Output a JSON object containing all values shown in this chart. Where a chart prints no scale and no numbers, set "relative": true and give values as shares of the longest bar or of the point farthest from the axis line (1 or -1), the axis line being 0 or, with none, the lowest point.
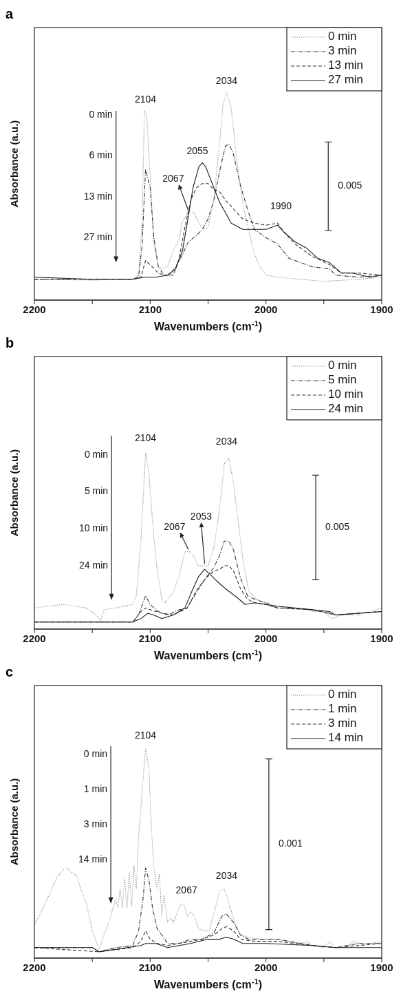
{
  "chart_data": [
    {
      "type": "line",
      "title": "a",
      "xlabel": "Wavenumbers (cm$^{-1}$)",
      "ylabel": "Absorbance (a.u.)",
      "relative": true,
      "xlim": [
        2200,
        1900
      ],
      "xticks": [
        2200,
        {
          "value": 2150,
          "label": null
        },
        2100,
        {
          "value": 2050,
          "label": null
        },
        2000,
        {
          "value": 1950,
          "label": null
        },
        1900
      ],
      "legend": "top right",
      "annotations": [
        "0 min",
        "6 min",
        "13 min",
        "27 min",
        "0.005",
        {
          "text": "2104",
          "x": 2104,
          "y": 0.91
        },
        {
          "text": "2034",
          "x": 2034,
          "y": 1.0
        },
        {
          "text": "2055",
          "x": 2055,
          "y": 0.66
        },
        {
          "text": "2067",
          "x": 2067,
          "y": 0.42
        },
        {
          "text": "1990",
          "x": 1990,
          "y": 0.37
        }
      ],
      "series": [
        {
          "name": "0 min",
          "color": "#8a8a8a",
          "line_style": "dotted",
          "x": [
            2200,
            2150,
            2115,
            2110,
            2107,
            2105,
            2103,
            2100,
            2097,
            2093,
            2090,
            2085,
            2080,
            2075,
            2072,
            2067,
            2062,
            2058,
            2054,
            2050,
            2045,
            2040,
            2037,
            2034,
            2030,
            2025,
            2020,
            2015,
            2010,
            2005,
            2000,
            1990,
            1970,
            1950,
            1920,
            1900
          ],
          "values": [
            0.1,
            0.096,
            0.1,
            0.12,
            0.37,
            0.91,
            0.89,
            0.6,
            0.28,
            0.16,
            0.15,
            0.16,
            0.24,
            0.29,
            0.38,
            0.42,
            0.42,
            0.37,
            0.34,
            0.35,
            0.48,
            0.76,
            0.94,
            1.0,
            0.92,
            0.67,
            0.46,
            0.34,
            0.22,
            0.16,
            0.12,
            0.11,
            0.1,
            0.09,
            0.1,
            0.11
          ]
        },
        {
          "name": "3 min",
          "color": "#333333",
          "line_style": "dashdot",
          "x": [
            2200,
            2115,
            2110,
            2107,
            2104,
            2100,
            2097,
            2093,
            2088,
            2083,
            2078,
            2072,
            2067,
            2060,
            2055,
            2050,
            2045,
            2040,
            2035,
            2032,
            2028,
            2022,
            2015,
            2010,
            2000,
            1990,
            1980,
            1970,
            1960,
            1945,
            1940,
            1920,
            1900
          ],
          "values": [
            0.1,
            0.1,
            0.11,
            0.26,
            0.63,
            0.54,
            0.31,
            0.16,
            0.12,
            0.12,
            0.16,
            0.22,
            0.28,
            0.31,
            0.34,
            0.39,
            0.48,
            0.62,
            0.74,
            0.75,
            0.7,
            0.55,
            0.42,
            0.34,
            0.3,
            0.27,
            0.2,
            0.18,
            0.16,
            0.15,
            0.12,
            0.11,
            0.12
          ]
        },
        {
          "name": "13 min",
          "color": "#333333",
          "line_style": "dashed",
          "x": [
            2200,
            2115,
            2108,
            2104,
            2100,
            2093,
            2088,
            2080,
            2075,
            2070,
            2065,
            2060,
            2055,
            2050,
            2045,
            2040,
            2035,
            2030,
            2020,
            2010,
            2000,
            1990,
            1985,
            1975,
            1960,
            1945,
            1935,
            1920,
            1900
          ],
          "values": [
            0.1,
            0.1,
            0.11,
            0.19,
            0.17,
            0.13,
            0.12,
            0.12,
            0.2,
            0.35,
            0.48,
            0.54,
            0.56,
            0.56,
            0.53,
            0.52,
            0.48,
            0.45,
            0.39,
            0.37,
            0.36,
            0.37,
            0.33,
            0.27,
            0.21,
            0.17,
            0.13,
            0.13,
            0.12
          ]
        },
        {
          "name": "27 min",
          "color": "#1a1a1a",
          "line_style": "solid",
          "x": [
            2200,
            2150,
            2115,
            2105,
            2095,
            2085,
            2078,
            2072,
            2068,
            2063,
            2058,
            2055,
            2052,
            2045,
            2040,
            2035,
            2030,
            2020,
            2010,
            2000,
            1990,
            1985,
            1975,
            1965,
            1955,
            1945,
            1935,
            1925,
            1910,
            1900
          ],
          "values": [
            0.11,
            0.1,
            0.1,
            0.11,
            0.11,
            0.12,
            0.15,
            0.24,
            0.37,
            0.54,
            0.64,
            0.66,
            0.64,
            0.54,
            0.47,
            0.42,
            0.37,
            0.34,
            0.34,
            0.34,
            0.36,
            0.33,
            0.28,
            0.25,
            0.2,
            0.18,
            0.13,
            0.13,
            0.11,
            0.12
          ]
        }
      ]
    },
    {
      "type": "line",
      "title": "b",
      "xlabel": "Wavenumbers (cm$^{-1}$)",
      "ylabel": "Absorbance (a.u.)",
      "relative": true,
      "xlim": [
        2200,
        1900
      ],
      "xticks": [
        2200,
        {
          "value": 2150,
          "label": null
        },
        2100,
        {
          "value": 2050,
          "label": null
        },
        2000,
        {
          "value": 1950,
          "label": null
        },
        1900
      ],
      "legend": "top right",
      "annotations": [
        "0 min",
        "5 min",
        "10 min",
        "24 min",
        "0.005",
        {
          "text": "2104",
          "x": 2104,
          "y": 1.0
        },
        {
          "text": "2034",
          "x": 2034,
          "y": 0.97
        },
        {
          "text": "2067",
          "x": 2067,
          "y": 0.44
        },
        {
          "text": "2053",
          "x": 2053,
          "y": 0.36
        }
      ],
      "series": [
        {
          "name": "0 min",
          "color": "#8a8a8a",
          "line_style": "dotted",
          "x": [
            2200,
            2175,
            2155,
            2145,
            2143,
            2140,
            2130,
            2115,
            2112,
            2108,
            2104,
            2101,
            2097,
            2094,
            2090,
            2087,
            2080,
            2075,
            2070,
            2066,
            2062,
            2058,
            2054,
            2050,
            2045,
            2040,
            2036,
            2032,
            2028,
            2024,
            2020,
            2015,
            2010,
            2000,
            1990,
            1965,
            1960,
            1950,
            1943,
            1935,
            1920,
            1910,
            1900
          ],
          "values": [
            0.12,
            0.14,
            0.12,
            0.07,
            0.04,
            0.11,
            0.12,
            0.14,
            0.19,
            0.5,
            1.0,
            0.88,
            0.53,
            0.34,
            0.17,
            0.15,
            0.21,
            0.3,
            0.44,
            0.44,
            0.41,
            0.36,
            0.36,
            0.36,
            0.46,
            0.69,
            0.94,
            0.97,
            0.83,
            0.61,
            0.4,
            0.22,
            0.18,
            0.14,
            0.12,
            0.11,
            0.1,
            0.1,
            0.06,
            0.08,
            0.08,
            0.1,
            0.12
          ]
        },
        {
          "name": "5 min",
          "color": "#333333",
          "line_style": "dashdot",
          "x": [
            2200,
            2115,
            2110,
            2104,
            2100,
            2093,
            2085,
            2075,
            2068,
            2060,
            2052,
            2045,
            2040,
            2036,
            2032,
            2028,
            2022,
            2016,
            2010,
            2000,
            1990,
            1980,
            1960,
            1945,
            1940,
            1920,
            1900
          ],
          "values": [
            0.04,
            0.04,
            0.08,
            0.19,
            0.14,
            0.1,
            0.08,
            0.11,
            0.12,
            0.21,
            0.29,
            0.35,
            0.42,
            0.5,
            0.5,
            0.45,
            0.29,
            0.19,
            0.17,
            0.15,
            0.12,
            0.12,
            0.11,
            0.09,
            0.08,
            0.09,
            0.1
          ]
        },
        {
          "name": "10 min",
          "color": "#333333",
          "line_style": "dashed",
          "x": [
            2200,
            2115,
            2108,
            2104,
            2100,
            2090,
            2080,
            2068,
            2060,
            2052,
            2045,
            2040,
            2036,
            2032,
            2028,
            2022,
            2016,
            2010,
            2000,
            1990,
            1960,
            1940,
            1900
          ],
          "values": [
            0.04,
            0.04,
            0.1,
            0.12,
            0.11,
            0.09,
            0.08,
            0.12,
            0.22,
            0.29,
            0.33,
            0.34,
            0.36,
            0.36,
            0.33,
            0.23,
            0.17,
            0.15,
            0.14,
            0.12,
            0.11,
            0.08,
            0.1
          ]
        },
        {
          "name": "24 min",
          "color": "#1a1a1a",
          "line_style": "solid",
          "x": [
            2200,
            2140,
            2115,
            2108,
            2102,
            2097,
            2090,
            2080,
            2070,
            2063,
            2058,
            2053,
            2048,
            2042,
            2035,
            2025,
            2018,
            2010,
            2000,
            1990,
            1960,
            1945,
            1940,
            1920,
            1900
          ],
          "values": [
            0.04,
            0.04,
            0.04,
            0.06,
            0.09,
            0.08,
            0.06,
            0.08,
            0.12,
            0.23,
            0.3,
            0.34,
            0.31,
            0.27,
            0.23,
            0.18,
            0.14,
            0.15,
            0.14,
            0.13,
            0.11,
            0.1,
            0.08,
            0.09,
            0.1
          ]
        }
      ]
    },
    {
      "type": "line",
      "title": "c",
      "xlabel": "Wavenumbers (cm$^{-1}$)",
      "ylabel": "Absorbance (a.u.)",
      "relative": true,
      "xlim": [
        2200,
        1900
      ],
      "xticks": [
        2200,
        {
          "value": 2150,
          "label": null
        },
        2100,
        {
          "value": 2050,
          "label": null
        },
        2000,
        {
          "value": 1950,
          "label": null
        },
        1900
      ],
      "legend": "top right",
      "annotations": [
        "0 min",
        "1 min",
        "3 min",
        "14 min",
        "0.001",
        {
          "text": "2104",
          "x": 2104,
          "y": 1.0
        },
        {
          "text": "2067",
          "x": 2071,
          "y": 0.26
        },
        {
          "text": "2034",
          "x": 2034,
          "y": 0.33
        }
      ],
      "series": [
        {
          "name": "0 min",
          "color": "#8a8a8a",
          "line_style": "dotted",
          "x": [
            2200,
            2195,
            2190,
            2185,
            2180,
            2175,
            2172,
            2168,
            2163,
            2160,
            2155,
            2150,
            2144,
            2140,
            2135,
            2132,
            2130,
            2128,
            2126,
            2124,
            2122,
            2120,
            2118,
            2116,
            2114,
            2112,
            2110,
            2107,
            2104,
            2101,
            2099,
            2097,
            2094,
            2092,
            2090,
            2088,
            2085,
            2082,
            2080,
            2077,
            2074,
            2071,
            2068,
            2065,
            2062,
            2058,
            2053,
            2049,
            2045,
            2040,
            2036,
            2032,
            2027,
            2022,
            2015,
            2005,
            1990,
            1970,
            1965,
            1960,
            1950,
            1945,
            1940,
            1930,
            1925,
            1920,
            1910,
            1900
          ],
          "values": [
            0.16,
            0.21,
            0.27,
            0.33,
            0.39,
            0.42,
            0.43,
            0.41,
            0.39,
            0.33,
            0.26,
            0.13,
            0.04,
            0.11,
            0.18,
            0.24,
            0.28,
            0.24,
            0.33,
            0.24,
            0.38,
            0.24,
            0.41,
            0.25,
            0.44,
            0.33,
            0.58,
            0.79,
            1.0,
            0.9,
            0.63,
            0.44,
            0.33,
            0.4,
            0.2,
            0.3,
            0.17,
            0.19,
            0.17,
            0.21,
            0.25,
            0.26,
            0.2,
            0.22,
            0.2,
            0.14,
            0.13,
            0.13,
            0.21,
            0.32,
            0.33,
            0.26,
            0.17,
            0.11,
            0.1,
            0.09,
            0.09,
            0.07,
            0.08,
            0.06,
            0.05,
            0.08,
            0.05,
            0.05,
            0.08,
            0.07,
            0.07,
            0.08
          ]
        },
        {
          "name": "1 min",
          "color": "#333333",
          "line_style": "dashdot",
          "x": [
            2200,
            2150,
            2144,
            2130,
            2115,
            2110,
            2106,
            2104,
            2101,
            2098,
            2094,
            2090,
            2085,
            2075,
            2065,
            2055,
            2045,
            2038,
            2034,
            2028,
            2022,
            2015,
            2000,
            1990,
            1960,
            1940,
            1920,
            1900
          ],
          "values": [
            0.05,
            0.05,
            0.03,
            0.05,
            0.06,
            0.13,
            0.29,
            0.43,
            0.37,
            0.24,
            0.14,
            0.11,
            0.07,
            0.07,
            0.09,
            0.09,
            0.12,
            0.2,
            0.21,
            0.17,
            0.11,
            0.09,
            0.09,
            0.09,
            0.06,
            0.05,
            0.07,
            0.07
          ]
        },
        {
          "name": "3 min",
          "color": "#333333",
          "line_style": "dashed",
          "x": [
            2200,
            2144,
            2115,
            2108,
            2104,
            2100,
            2094,
            2085,
            2075,
            2065,
            2055,
            2045,
            2038,
            2034,
            2028,
            2022,
            2010,
            1990,
            1960,
            1940,
            1900
          ],
          "values": [
            0.05,
            0.03,
            0.05,
            0.08,
            0.13,
            0.09,
            0.07,
            0.06,
            0.07,
            0.08,
            0.09,
            0.11,
            0.14,
            0.15,
            0.13,
            0.09,
            0.08,
            0.08,
            0.06,
            0.05,
            0.07
          ]
        },
        {
          "name": "14 min",
          "color": "#1a1a1a",
          "line_style": "solid",
          "x": [
            2200,
            2150,
            2144,
            2120,
            2108,
            2104,
            2095,
            2085,
            2075,
            2065,
            2050,
            2040,
            2034,
            2028,
            2020,
            2000,
            1960,
            1940,
            1900
          ],
          "values": [
            0.05,
            0.05,
            0.03,
            0.05,
            0.06,
            0.07,
            0.07,
            0.05,
            0.06,
            0.07,
            0.09,
            0.09,
            0.1,
            0.09,
            0.07,
            0.07,
            0.06,
            0.05,
            0.05
          ]
        }
      ]
    }
  ]
}
